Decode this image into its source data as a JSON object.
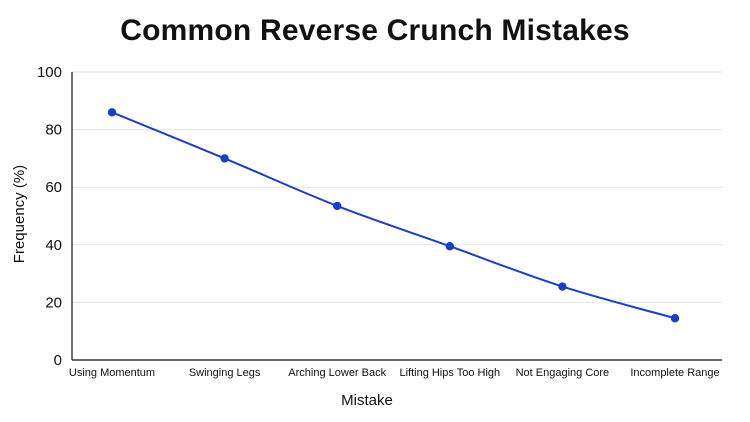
{
  "chart_data": {
    "type": "line",
    "title": "Common Reverse Crunch Mistakes",
    "xlabel": "Mistake",
    "ylabel": "Frequency (%)",
    "categories": [
      "Using Momentum",
      "Swinging Legs",
      "Arching Lower Back",
      "Lifting Hips Too High",
      "Not Engaging Core",
      "Incomplete Range"
    ],
    "series": [
      {
        "values": [
          86,
          70,
          53.5,
          39.5,
          25.5,
          14.5
        ],
        "color": "#1a3fc4"
      }
    ],
    "ylim": [
      0,
      100
    ],
    "yticks": [
      "0",
      "20",
      "40",
      "60",
      "80",
      "100"
    ],
    "grid": true,
    "legend": "none"
  }
}
